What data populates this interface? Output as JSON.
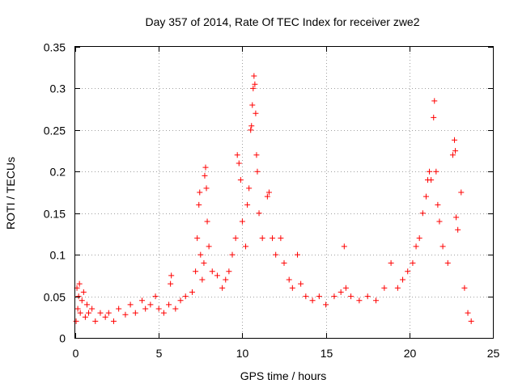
{
  "chart_data": {
    "type": "scatter",
    "title": "Day 357 of 2014, Rate Of TEC Index for receiver zwe2",
    "xlabel": "GPS time / hours",
    "ylabel": "ROTI / TECUs",
    "xlim": [
      0,
      25
    ],
    "ylim": [
      0,
      0.35
    ],
    "x_ticks": [
      0,
      5,
      10,
      15,
      20,
      25
    ],
    "x_tick_labels": [
      "0",
      "5",
      "10",
      "15",
      "20",
      "25"
    ],
    "y_ticks": [
      0,
      0.05,
      0.1,
      0.15,
      0.2,
      0.25,
      0.3,
      0.35
    ],
    "y_tick_labels": [
      "0",
      "0.05",
      "0.1",
      "0.15",
      "0.2",
      "0.25",
      "0.3",
      "0.35"
    ],
    "grid": true,
    "marker": "+",
    "series": [
      {
        "name": "ROTI",
        "color": "#ff0000",
        "points": [
          [
            0.05,
            0.02
          ],
          [
            0.1,
            0.06
          ],
          [
            0.15,
            0.035
          ],
          [
            0.2,
            0.05
          ],
          [
            0.25,
            0.065
          ],
          [
            0.3,
            0.03
          ],
          [
            0.4,
            0.045
          ],
          [
            0.5,
            0.055
          ],
          [
            0.6,
            0.025
          ],
          [
            0.7,
            0.04
          ],
          [
            0.8,
            0.03
          ],
          [
            1.0,
            0.035
          ],
          [
            1.2,
            0.02
          ],
          [
            1.5,
            0.03
          ],
          [
            1.8,
            0.025
          ],
          [
            2.0,
            0.03
          ],
          [
            2.3,
            0.02
          ],
          [
            2.6,
            0.035
          ],
          [
            3.0,
            0.028
          ],
          [
            3.3,
            0.04
          ],
          [
            3.6,
            0.03
          ],
          [
            4.0,
            0.045
          ],
          [
            4.2,
            0.035
          ],
          [
            4.5,
            0.04
          ],
          [
            4.8,
            0.05
          ],
          [
            5.0,
            0.035
          ],
          [
            5.3,
            0.03
          ],
          [
            5.6,
            0.04
          ],
          [
            5.7,
            0.065
          ],
          [
            5.75,
            0.075
          ],
          [
            6.0,
            0.035
          ],
          [
            6.3,
            0.045
          ],
          [
            6.6,
            0.05
          ],
          [
            7.0,
            0.055
          ],
          [
            7.2,
            0.08
          ],
          [
            7.3,
            0.12
          ],
          [
            7.4,
            0.16
          ],
          [
            7.45,
            0.175
          ],
          [
            7.5,
            0.1
          ],
          [
            7.6,
            0.07
          ],
          [
            7.7,
            0.09
          ],
          [
            7.75,
            0.195
          ],
          [
            7.8,
            0.205
          ],
          [
            7.85,
            0.18
          ],
          [
            7.9,
            0.14
          ],
          [
            8.0,
            0.11
          ],
          [
            8.2,
            0.08
          ],
          [
            8.5,
            0.075
          ],
          [
            8.8,
            0.06
          ],
          [
            9.0,
            0.07
          ],
          [
            9.2,
            0.08
          ],
          [
            9.4,
            0.1
          ],
          [
            9.6,
            0.12
          ],
          [
            9.7,
            0.22
          ],
          [
            9.8,
            0.21
          ],
          [
            9.9,
            0.19
          ],
          [
            10.0,
            0.14
          ],
          [
            10.2,
            0.11
          ],
          [
            10.3,
            0.16
          ],
          [
            10.4,
            0.18
          ],
          [
            10.5,
            0.25
          ],
          [
            10.55,
            0.255
          ],
          [
            10.6,
            0.28
          ],
          [
            10.65,
            0.3
          ],
          [
            10.7,
            0.315
          ],
          [
            10.75,
            0.305
          ],
          [
            10.8,
            0.27
          ],
          [
            10.85,
            0.22
          ],
          [
            10.9,
            0.2
          ],
          [
            11.0,
            0.15
          ],
          [
            11.2,
            0.12
          ],
          [
            11.5,
            0.17
          ],
          [
            11.6,
            0.175
          ],
          [
            11.8,
            0.12
          ],
          [
            12.0,
            0.1
          ],
          [
            12.3,
            0.12
          ],
          [
            12.5,
            0.09
          ],
          [
            12.8,
            0.07
          ],
          [
            13.0,
            0.06
          ],
          [
            13.3,
            0.1
          ],
          [
            13.5,
            0.065
          ],
          [
            13.8,
            0.05
          ],
          [
            14.2,
            0.045
          ],
          [
            14.6,
            0.05
          ],
          [
            15.0,
            0.04
          ],
          [
            15.5,
            0.05
          ],
          [
            15.9,
            0.055
          ],
          [
            16.1,
            0.11
          ],
          [
            16.2,
            0.06
          ],
          [
            16.5,
            0.05
          ],
          [
            17.0,
            0.045
          ],
          [
            17.5,
            0.05
          ],
          [
            18.0,
            0.045
          ],
          [
            18.5,
            0.06
          ],
          [
            18.9,
            0.09
          ],
          [
            19.3,
            0.06
          ],
          [
            19.6,
            0.07
          ],
          [
            19.9,
            0.08
          ],
          [
            20.2,
            0.09
          ],
          [
            20.4,
            0.11
          ],
          [
            20.6,
            0.12
          ],
          [
            20.8,
            0.15
          ],
          [
            21.0,
            0.17
          ],
          [
            21.1,
            0.19
          ],
          [
            21.2,
            0.2
          ],
          [
            21.3,
            0.19
          ],
          [
            21.45,
            0.265
          ],
          [
            21.5,
            0.285
          ],
          [
            21.6,
            0.2
          ],
          [
            21.7,
            0.16
          ],
          [
            21.8,
            0.14
          ],
          [
            22.0,
            0.11
          ],
          [
            22.3,
            0.09
          ],
          [
            22.6,
            0.22
          ],
          [
            22.7,
            0.238
          ],
          [
            22.75,
            0.225
          ],
          [
            22.8,
            0.145
          ],
          [
            22.9,
            0.13
          ],
          [
            23.1,
            0.175
          ],
          [
            23.3,
            0.06
          ],
          [
            23.5,
            0.03
          ],
          [
            23.7,
            0.02
          ]
        ]
      }
    ]
  }
}
